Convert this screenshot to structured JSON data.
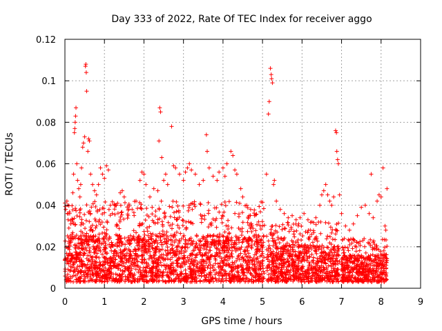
{
  "chart_data": {
    "type": "scatter",
    "title": "Day 333 of 2022, Rate Of TEC Index for receiver aggo",
    "xlabel": "GPS time / hours",
    "ylabel": "ROTI / TECUs",
    "xlim": [
      0,
      9
    ],
    "ylim": [
      0,
      0.12
    ],
    "xticks": [
      0,
      1,
      2,
      3,
      4,
      5,
      6,
      7,
      8,
      9
    ],
    "yticks": [
      0,
      0.02,
      0.04,
      0.06,
      0.08,
      0.1,
      0.12
    ],
    "xtick_labels": [
      "0",
      "1",
      "2",
      "3",
      "4",
      "5",
      "6",
      "7",
      "8",
      "9"
    ],
    "ytick_labels": [
      "0",
      "0.02",
      "0.04",
      "0.06",
      "0.08",
      "0.1",
      "0.12"
    ],
    "grid": true,
    "marker": "plus",
    "color": "#ff0000",
    "points": [
      [
        0.02,
        0.038
      ],
      [
        0.05,
        0.042
      ],
      [
        0.08,
        0.033
      ],
      [
        0.1,
        0.029
      ],
      [
        0.12,
        0.036
      ],
      [
        0.15,
        0.031
      ],
      [
        0.18,
        0.026
      ],
      [
        0.2,
        0.046
      ],
      [
        0.22,
        0.055
      ],
      [
        0.24,
        0.075
      ],
      [
        0.25,
        0.077
      ],
      [
        0.26,
        0.08
      ],
      [
        0.27,
        0.083
      ],
      [
        0.28,
        0.087
      ],
      [
        0.3,
        0.06
      ],
      [
        0.32,
        0.052
      ],
      [
        0.35,
        0.048
      ],
      [
        0.38,
        0.044
      ],
      [
        0.4,
        0.05
      ],
      [
        0.42,
        0.058
      ],
      [
        0.45,
        0.068
      ],
      [
        0.47,
        0.07
      ],
      [
        0.5,
        0.073
      ],
      [
        0.52,
        0.107
      ],
      [
        0.53,
        0.108
      ],
      [
        0.54,
        0.104
      ],
      [
        0.55,
        0.095
      ],
      [
        0.58,
        0.066
      ],
      [
        0.6,
        0.072
      ],
      [
        0.62,
        0.071
      ],
      [
        0.65,
        0.055
      ],
      [
        0.7,
        0.05
      ],
      [
        0.75,
        0.047
      ],
      [
        0.8,
        0.045
      ],
      [
        0.85,
        0.05
      ],
      [
        0.9,
        0.058
      ],
      [
        0.95,
        0.055
      ],
      [
        1.0,
        0.053
      ],
      [
        1.05,
        0.059
      ],
      [
        1.1,
        0.057
      ],
      [
        1.15,
        0.04
      ],
      [
        1.2,
        0.036
      ],
      [
        1.3,
        0.03
      ],
      [
        1.4,
        0.046
      ],
      [
        1.45,
        0.047
      ],
      [
        1.5,
        0.044
      ],
      [
        1.6,
        0.035
      ],
      [
        1.7,
        0.038
      ],
      [
        1.8,
        0.042
      ],
      [
        1.9,
        0.052
      ],
      [
        1.95,
        0.056
      ],
      [
        2.0,
        0.055
      ],
      [
        2.05,
        0.05
      ],
      [
        2.15,
        0.044
      ],
      [
        2.25,
        0.048
      ],
      [
        2.35,
        0.047
      ],
      [
        2.4,
        0.087
      ],
      [
        2.42,
        0.085
      ],
      [
        2.38,
        0.071
      ],
      [
        2.45,
        0.063
      ],
      [
        2.5,
        0.052
      ],
      [
        2.55,
        0.055
      ],
      [
        2.6,
        0.05
      ],
      [
        2.7,
        0.078
      ],
      [
        2.75,
        0.059
      ],
      [
        2.8,
        0.058
      ],
      [
        2.9,
        0.055
      ],
      [
        3.0,
        0.052
      ],
      [
        3.05,
        0.056
      ],
      [
        3.1,
        0.058
      ],
      [
        3.15,
        0.06
      ],
      [
        3.2,
        0.057
      ],
      [
        3.3,
        0.055
      ],
      [
        3.4,
        0.05
      ],
      [
        3.5,
        0.052
      ],
      [
        3.58,
        0.074
      ],
      [
        3.6,
        0.066
      ],
      [
        3.65,
        0.058
      ],
      [
        3.75,
        0.054
      ],
      [
        3.85,
        0.052
      ],
      [
        3.9,
        0.056
      ],
      [
        4.0,
        0.058
      ],
      [
        4.05,
        0.054
      ],
      [
        4.1,
        0.06
      ],
      [
        4.2,
        0.066
      ],
      [
        4.25,
        0.064
      ],
      [
        4.3,
        0.057
      ],
      [
        4.35,
        0.055
      ],
      [
        4.45,
        0.048
      ],
      [
        4.5,
        0.044
      ],
      [
        4.6,
        0.04
      ],
      [
        4.7,
        0.038
      ],
      [
        4.8,
        0.035
      ],
      [
        4.9,
        0.032
      ],
      [
        5.0,
        0.03
      ],
      [
        5.1,
        0.055
      ],
      [
        5.15,
        0.084
      ],
      [
        5.17,
        0.09
      ],
      [
        5.2,
        0.106
      ],
      [
        5.22,
        0.103
      ],
      [
        5.23,
        0.101
      ],
      [
        5.25,
        0.099
      ],
      [
        5.28,
        0.05
      ],
      [
        5.3,
        0.052
      ],
      [
        5.35,
        0.042
      ],
      [
        5.45,
        0.038
      ],
      [
        5.55,
        0.036
      ],
      [
        5.65,
        0.034
      ],
      [
        5.75,
        0.035
      ],
      [
        5.85,
        0.033
      ],
      [
        5.95,
        0.034
      ],
      [
        6.05,
        0.036
      ],
      [
        6.15,
        0.033
      ],
      [
        6.25,
        0.032
      ],
      [
        6.35,
        0.034
      ],
      [
        6.45,
        0.04
      ],
      [
        6.5,
        0.045
      ],
      [
        6.55,
        0.047
      ],
      [
        6.6,
        0.05
      ],
      [
        6.65,
        0.045
      ],
      [
        6.7,
        0.042
      ],
      [
        6.75,
        0.04
      ],
      [
        6.8,
        0.044
      ],
      [
        6.85,
        0.076
      ],
      [
        6.87,
        0.075
      ],
      [
        6.88,
        0.066
      ],
      [
        6.9,
        0.062
      ],
      [
        6.92,
        0.06
      ],
      [
        6.95,
        0.045
      ],
      [
        7.0,
        0.036
      ],
      [
        7.1,
        0.03
      ],
      [
        7.2,
        0.028
      ],
      [
        7.3,
        0.031
      ],
      [
        7.4,
        0.035
      ],
      [
        7.5,
        0.039
      ],
      [
        7.6,
        0.04
      ],
      [
        7.7,
        0.036
      ],
      [
        7.75,
        0.055
      ],
      [
        7.8,
        0.034
      ],
      [
        7.9,
        0.042
      ],
      [
        7.95,
        0.045
      ],
      [
        8.0,
        0.044
      ],
      [
        8.05,
        0.058
      ],
      [
        8.1,
        0.03
      ],
      [
        8.15,
        0.048
      ],
      [
        8.12,
        0.028
      ]
    ],
    "dense_bands": [
      {
        "x_range": [
          0.0,
          5.05
        ],
        "y_min": 0.003,
        "y_max": 0.042,
        "typical": 0.016
      },
      {
        "x_range": [
          5.1,
          6.95
        ],
        "y_min": 0.003,
        "y_max": 0.032,
        "typical": 0.013
      },
      {
        "x_range": [
          7.0,
          8.15
        ],
        "y_min": 0.003,
        "y_max": 0.024,
        "typical": 0.01
      }
    ]
  }
}
